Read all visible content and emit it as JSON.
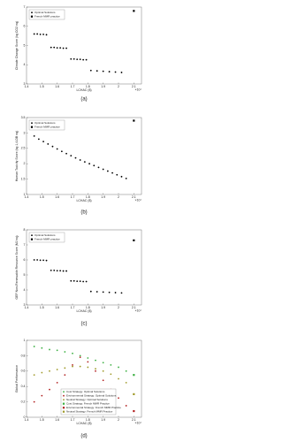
{
  "chart_data": [
    {
      "type": "scatter",
      "caption": "(a)",
      "x_label": "LCHAC ($)",
      "y_label": "Climate Change Score (kg CO2 eq)",
      "x_exponent": "×10⁴",
      "xlim": [
        1.4,
        2.15
      ],
      "xticks": [
        1.4,
        1.5,
        1.6,
        1.7,
        1.8,
        1.9,
        2,
        2.1
      ],
      "ylim": [
        3,
        7
      ],
      "yticks": [
        3,
        4,
        5,
        6,
        7
      ],
      "legend": "upper left",
      "series": [
        {
          "name": "Optimal Solutions",
          "color": "#000000",
          "marker": "dot",
          "x": [
            1.45,
            1.47,
            1.49,
            1.51,
            1.53,
            1.56,
            1.58,
            1.6,
            1.62,
            1.64,
            1.66,
            1.69,
            1.71,
            1.73,
            1.75,
            1.77,
            1.79,
            1.82,
            1.86,
            1.9,
            1.94,
            1.98,
            2.02
          ],
          "values": [
            5.6,
            5.6,
            5.58,
            5.58,
            5.56,
            4.9,
            4.9,
            4.88,
            4.88,
            4.86,
            4.86,
            4.3,
            4.3,
            4.28,
            4.28,
            4.26,
            4.26,
            3.7,
            3.68,
            3.66,
            3.64,
            3.62,
            3.6
          ]
        },
        {
          "name": "French MMR practice",
          "color": "#000000",
          "marker": "square",
          "x": [
            2.1
          ],
          "values": [
            6.8
          ]
        }
      ]
    },
    {
      "type": "scatter",
      "caption": "(b)",
      "x_label": "LCHAC ($)",
      "y_label": "Human Toxicity Score (kg 1,4-DB eq)",
      "x_exponent": "×10⁴",
      "xlim": [
        1.4,
        2.15
      ],
      "xticks": [
        1.4,
        1.5,
        1.6,
        1.7,
        1.8,
        1.9,
        2,
        2.1
      ],
      "ylim": [
        1,
        3.5
      ],
      "yticks": [
        1,
        1.5,
        2,
        2.5,
        3,
        3.5
      ],
      "legend": "upper left",
      "series": [
        {
          "name": "Optimal Solutions",
          "color": "#000000",
          "marker": "dot",
          "x": [
            1.45,
            1.48,
            1.51,
            1.54,
            1.57,
            1.6,
            1.63,
            1.66,
            1.69,
            1.72,
            1.75,
            1.78,
            1.81,
            1.84,
            1.87,
            1.9,
            1.93,
            1.96,
            1.99,
            2.02,
            2.05
          ],
          "values": [
            2.9,
            2.8,
            2.72,
            2.64,
            2.56,
            2.48,
            2.4,
            2.33,
            2.26,
            2.19,
            2.12,
            2.06,
            2.0,
            1.94,
            1.88,
            1.82,
            1.76,
            1.7,
            1.64,
            1.58,
            1.52
          ]
        },
        {
          "name": "French MMR practice",
          "color": "#000000",
          "marker": "square",
          "x": [
            2.1
          ],
          "values": [
            3.4
          ]
        }
      ]
    },
    {
      "type": "scatter",
      "caption": "(c)",
      "x_label": "LCHAC ($)",
      "y_label": "GEF Non-Renewable Resource Score (MJ eq)",
      "x_exponent": "×10⁴",
      "xlim": [
        1.4,
        2.15
      ],
      "xticks": [
        1.4,
        1.5,
        1.6,
        1.7,
        1.8,
        1.9,
        2,
        2.1
      ],
      "ylim": [
        3,
        8
      ],
      "yticks": [
        3,
        4,
        5,
        6,
        7,
        8
      ],
      "legend": "upper left",
      "series": [
        {
          "name": "Optimal Solutions",
          "color": "#000000",
          "marker": "dot",
          "x": [
            1.45,
            1.47,
            1.49,
            1.51,
            1.53,
            1.56,
            1.58,
            1.6,
            1.62,
            1.64,
            1.66,
            1.69,
            1.71,
            1.73,
            1.75,
            1.77,
            1.79,
            1.82,
            1.86,
            1.9,
            1.94,
            1.98,
            2.02
          ],
          "values": [
            6.0,
            6.0,
            5.98,
            5.98,
            5.96,
            5.3,
            5.3,
            5.28,
            5.28,
            5.26,
            5.26,
            4.6,
            4.6,
            4.58,
            4.58,
            4.56,
            4.56,
            3.9,
            3.88,
            3.86,
            3.84,
            3.82,
            3.8
          ]
        },
        {
          "name": "French MMR practice",
          "color": "#000000",
          "marker": "square",
          "x": [
            2.1
          ],
          "values": [
            7.3
          ]
        }
      ]
    },
    {
      "type": "scatter",
      "caption": "(d)",
      "x_label": "LCHAC ($)",
      "y_label": "Global Performance",
      "x_exponent": "×10⁴",
      "xlim": [
        1.4,
        2.15
      ],
      "xticks": [
        1.4,
        1.5,
        1.6,
        1.7,
        1.8,
        1.9,
        2,
        2.1
      ],
      "ylim": [
        0,
        1
      ],
      "yticks": [
        0,
        0.2,
        0.4,
        0.6,
        0.8,
        1
      ],
      "legend": "lower center",
      "series": [
        {
          "name": "Cost Strategy: Optimal Solutions",
          "color": "#3cb043",
          "marker": "dot",
          "x": [
            1.45,
            1.5,
            1.55,
            1.6,
            1.65,
            1.7,
            1.75,
            1.8,
            1.85,
            1.9,
            1.95,
            2.0,
            2.05
          ],
          "values": [
            0.92,
            0.9,
            0.88,
            0.87,
            0.85,
            0.83,
            0.8,
            0.77,
            0.74,
            0.71,
            0.68,
            0.65,
            0.6
          ]
        },
        {
          "name": "Environmental Strategy: Optimal Solutions",
          "color": "#b22222",
          "marker": "dot",
          "x": [
            1.45,
            1.5,
            1.55,
            1.6,
            1.65,
            1.7,
            1.75,
            1.8,
            1.85,
            1.9,
            1.95,
            2.0,
            2.05
          ],
          "values": [
            0.2,
            0.28,
            0.36,
            0.45,
            0.55,
            0.68,
            0.78,
            0.72,
            0.6,
            0.48,
            0.36,
            0.25,
            0.15
          ]
        },
        {
          "name": "Neutral Strategy: Optimal Solutions",
          "color": "#a09a2a",
          "marker": "dot",
          "x": [
            1.45,
            1.5,
            1.55,
            1.6,
            1.65,
            1.7,
            1.75,
            1.8,
            1.85,
            1.9,
            1.95,
            2.0,
            2.05
          ],
          "values": [
            0.55,
            0.58,
            0.6,
            0.62,
            0.64,
            0.66,
            0.66,
            0.65,
            0.63,
            0.6,
            0.56,
            0.5,
            0.45
          ]
        },
        {
          "name": "Cost Strategy: French MMR Practice",
          "color": "#3cb043",
          "marker": "square",
          "x": [
            2.1
          ],
          "values": [
            0.55
          ]
        },
        {
          "name": "Environmental Strategy: French MMR Practice",
          "color": "#b22222",
          "marker": "square",
          "x": [
            2.1
          ],
          "values": [
            0.08
          ]
        },
        {
          "name": "Neutral Strategy: French MMR Practice",
          "color": "#a09a2a",
          "marker": "square",
          "x": [
            2.1
          ],
          "values": [
            0.3
          ]
        }
      ]
    }
  ]
}
